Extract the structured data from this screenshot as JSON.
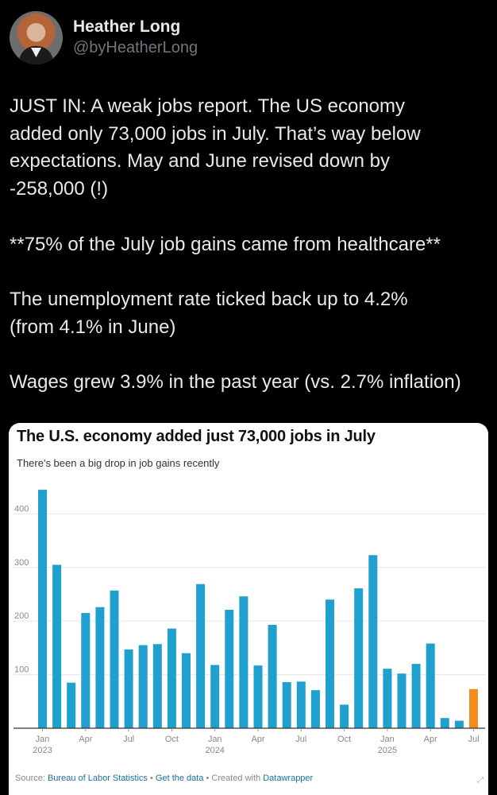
{
  "author": {
    "name": "Heather Long",
    "handle": "@byHeatherLong"
  },
  "tweet": {
    "lines": [
      "JUST IN: A weak jobs report. The US economy",
      "added only 73,000 jobs in July. That’s way below",
      "expectations. May and June revised down by",
      "-258,000 (!)",
      "",
      "**75% of the July job gains came from healthcare**",
      "",
      "The unemployment rate ticked back up to 4.2%",
      "(from 4.1% in June)",
      "",
      "Wages grew 3.9% in the past year (vs. 2.7% inflation)"
    ]
  },
  "card": {
    "title": "The U.S. economy added just 73,000 jobs in July",
    "subtitle": "There's been a big drop in job gains recently",
    "source_prefix": "Source: ",
    "source_name": "Bureau of Labor Statistics",
    "sep1": " • ",
    "get_data": "Get the data",
    "sep2": " • Created with ",
    "tool": "Datawrapper"
  },
  "colors": {
    "bar": "#1fa0cf",
    "highlight": "#f28c1c",
    "grid": "#e6e6e6",
    "axis_text": "#888888"
  },
  "chart_data": {
    "type": "bar",
    "title": "The U.S. economy added just 73,000 jobs in July",
    "subtitle": "There's been a big drop in job gains recently",
    "xlabel": "",
    "ylabel": "",
    "ylim": [
      0,
      450
    ],
    "yticks": [
      100,
      200,
      300,
      400
    ],
    "grid": true,
    "categories": [
      "Jan 2023",
      "Feb 2023",
      "Mar 2023",
      "Apr 2023",
      "May 2023",
      "Jun 2023",
      "Jul 2023",
      "Aug 2023",
      "Sep 2023",
      "Oct 2023",
      "Nov 2023",
      "Dec 2023",
      "Jan 2024",
      "Feb 2024",
      "Mar 2024",
      "Apr 2024",
      "May 2024",
      "Jun 2024",
      "Jul 2024",
      "Aug 2024",
      "Sep 2024",
      "Oct 2024",
      "Nov 2024",
      "Dec 2024",
      "Jan 2025",
      "Feb 2025",
      "Mar 2025",
      "Apr 2025",
      "May 2025",
      "Jun 2025",
      "Jul 2025"
    ],
    "values": [
      445,
      305,
      85,
      215,
      226,
      257,
      147,
      155,
      157,
      186,
      140,
      269,
      118,
      221,
      246,
      117,
      193,
      86,
      87,
      71,
      240,
      44,
      261,
      323,
      111,
      102,
      120,
      158,
      19,
      14,
      73
    ],
    "highlight_index": 30,
    "xtick_labels": [
      {
        "index": 0,
        "label": "Jan",
        "year": "2023"
      },
      {
        "index": 3,
        "label": "Apr",
        "year": ""
      },
      {
        "index": 6,
        "label": "Jul",
        "year": ""
      },
      {
        "index": 9,
        "label": "Oct",
        "year": ""
      },
      {
        "index": 12,
        "label": "Jan",
        "year": "2024"
      },
      {
        "index": 15,
        "label": "Apr",
        "year": ""
      },
      {
        "index": 18,
        "label": "Jul",
        "year": ""
      },
      {
        "index": 21,
        "label": "Oct",
        "year": ""
      },
      {
        "index": 24,
        "label": "Jan",
        "year": "2025"
      },
      {
        "index": 27,
        "label": "Apr",
        "year": ""
      },
      {
        "index": 30,
        "label": "Jul",
        "year": ""
      }
    ]
  }
}
